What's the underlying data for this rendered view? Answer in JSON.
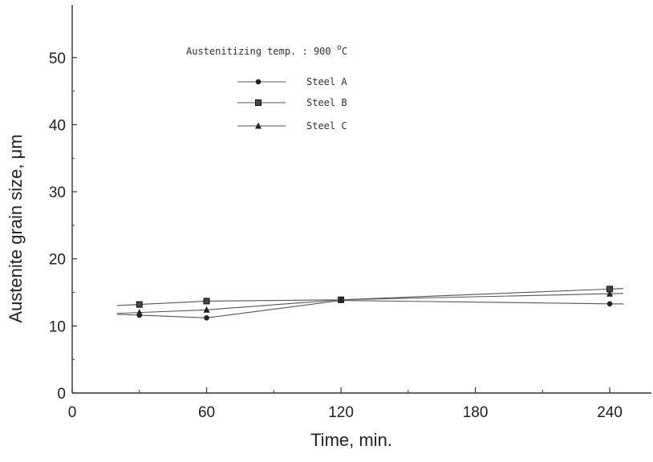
{
  "chart_data": {
    "type": "line",
    "title": "",
    "annotation": {
      "text": "Austenitizing temp. :  900 ",
      "degree": "o",
      "unit": "C"
    },
    "xlabel": "Time,  min.",
    "ylabel": "Austenite   grain   size, μm",
    "xlim": [
      0,
      250
    ],
    "ylim": [
      0,
      55
    ],
    "xticks": [
      0,
      60,
      120,
      180,
      240
    ],
    "yticks": [
      0,
      10,
      20,
      30,
      40,
      50
    ],
    "series": [
      {
        "name": "Steel A",
        "marker": "circle",
        "x": [
          30,
          60,
          120,
          240
        ],
        "y": [
          11.6,
          11.2,
          13.8,
          13.3
        ]
      },
      {
        "name": "Steel B",
        "marker": "square",
        "x": [
          30,
          60,
          120,
          240
        ],
        "y": [
          13.2,
          13.7,
          13.9,
          15.5
        ]
      },
      {
        "name": "Steel C",
        "marker": "triangle",
        "x": [
          30,
          60,
          120,
          240
        ],
        "y": [
          12.0,
          12.4,
          13.9,
          14.8
        ]
      }
    ],
    "legend_position": "top-left",
    "grid": false,
    "line_color": "#555555"
  }
}
